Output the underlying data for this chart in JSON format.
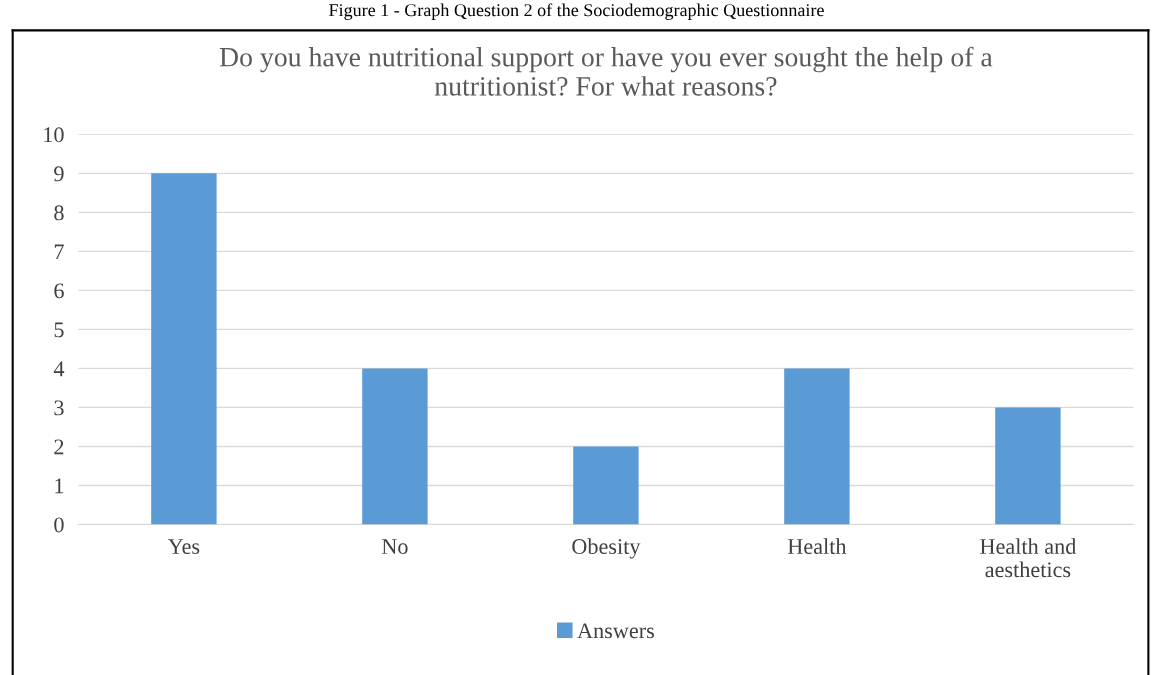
{
  "chart_data": {
    "type": "bar",
    "title": "Do you have nutritional support or have you ever sought the help of a\nnutritionist? For what reasons?",
    "annotations": [
      "Figure 1 - Graph Question 2 of the Sociodemographic Questionnaire"
    ],
    "categories": [
      "Yes",
      "No",
      "Obesity",
      "Health",
      "Health and\naesthetics"
    ],
    "series": [
      {
        "name": "Answers",
        "color": "#5b9bd5",
        "values": [
          9,
          4,
          2,
          4,
          3
        ]
      }
    ],
    "ylim": [
      0,
      10
    ],
    "yticks": [
      0,
      1,
      2,
      3,
      4,
      5,
      6,
      7,
      8,
      9,
      10
    ],
    "grid": "y",
    "legend": "bottom"
  }
}
